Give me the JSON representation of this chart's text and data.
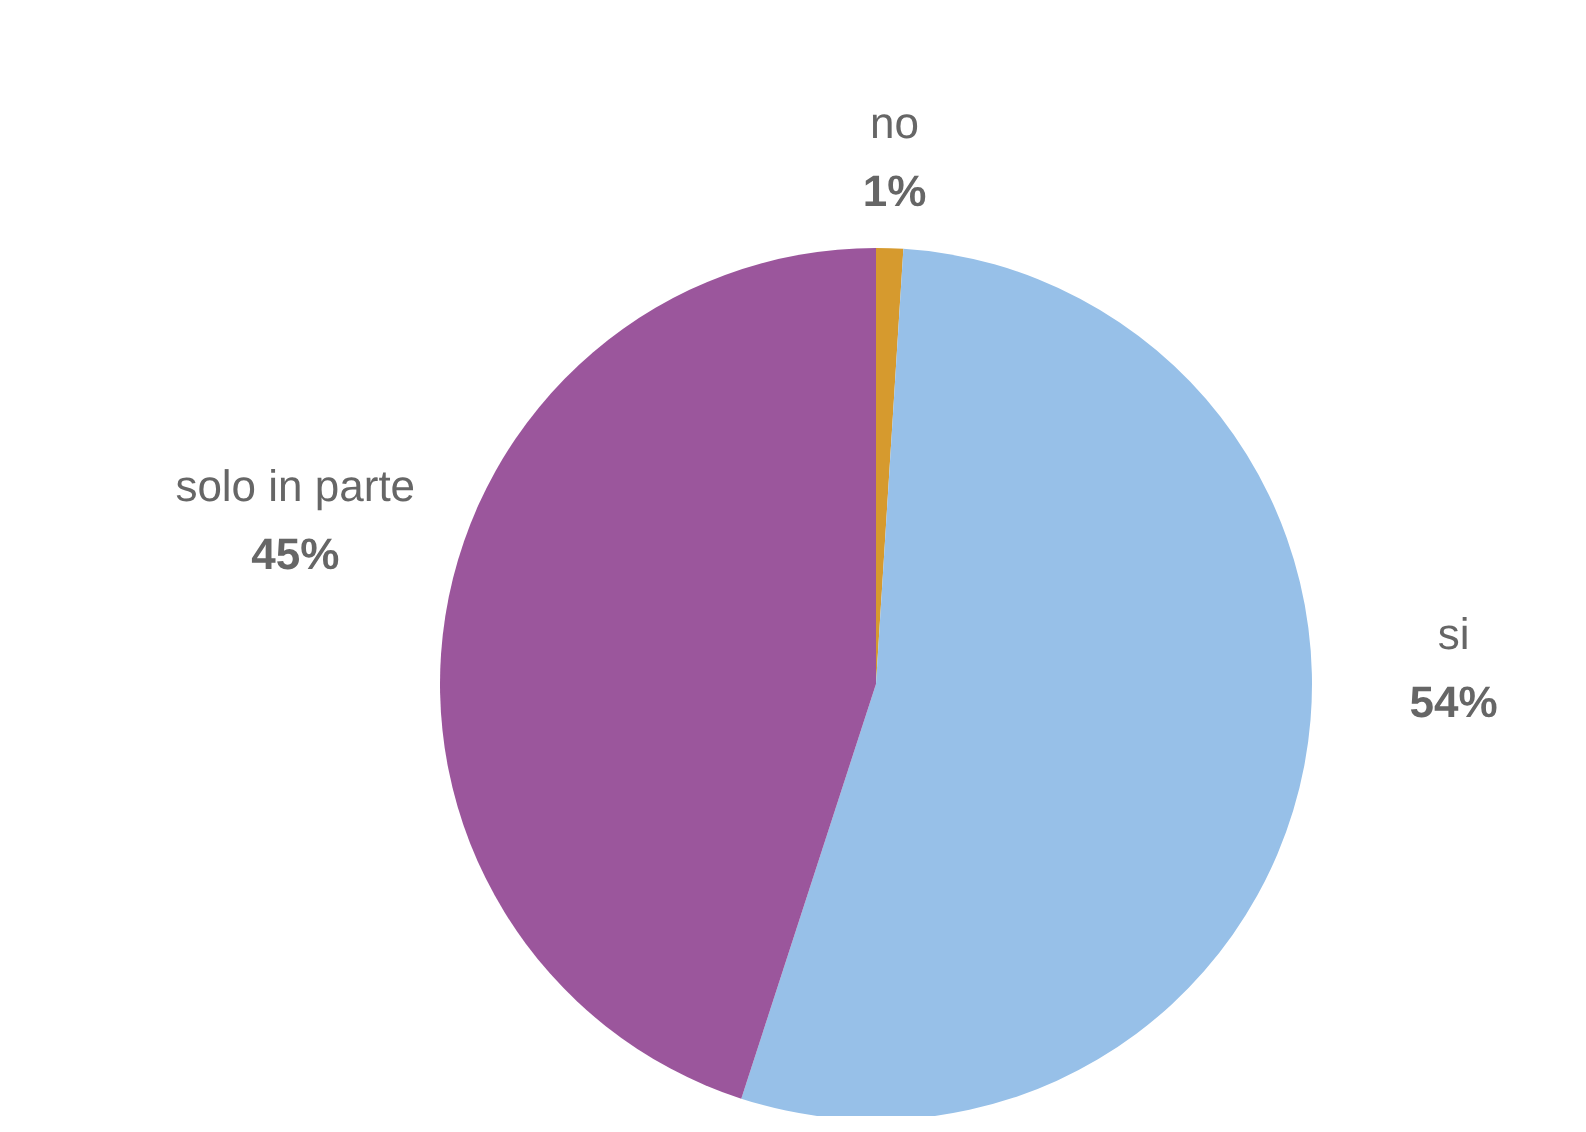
{
  "chart_data": {
    "type": "pie",
    "categories": [
      "no",
      "si",
      "solo in parte"
    ],
    "values": [
      1,
      54,
      45
    ],
    "colors": [
      "#d69a2e",
      "#97c0e8",
      "#9b569c"
    ],
    "value_labels": [
      "1%",
      "54%",
      "45%"
    ],
    "legend": false
  }
}
